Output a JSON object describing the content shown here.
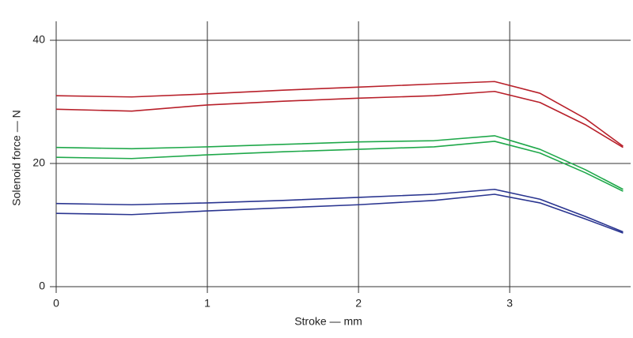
{
  "chart_data": {
    "type": "line",
    "x_label": "Stroke — mm",
    "y_label": "Solenoid force — N",
    "x": [
      0,
      0.5,
      1,
      1.5,
      2,
      2.5,
      2.9,
      3.2,
      3.5,
      3.75
    ],
    "series": [
      {
        "color": "#b8202a",
        "values": [
          31.0,
          30.8,
          31.3,
          31.9,
          32.4,
          32.9,
          33.3,
          31.4,
          27.3,
          22.8
        ]
      },
      {
        "color": "#b8202a",
        "values": [
          28.8,
          28.5,
          29.5,
          30.1,
          30.6,
          31.0,
          31.7,
          29.9,
          26.3,
          22.6
        ]
      },
      {
        "color": "#1fa84a",
        "values": [
          22.6,
          22.4,
          22.7,
          23.1,
          23.5,
          23.7,
          24.5,
          22.3,
          19.0,
          15.8
        ]
      },
      {
        "color": "#1fa84a",
        "values": [
          21.0,
          20.8,
          21.4,
          21.9,
          22.3,
          22.7,
          23.6,
          21.7,
          18.5,
          15.5
        ]
      },
      {
        "color": "#2a3590",
        "values": [
          13.5,
          13.3,
          13.6,
          14.0,
          14.5,
          15.0,
          15.8,
          14.2,
          11.4,
          8.9
        ]
      },
      {
        "color": "#2a3590",
        "values": [
          11.9,
          11.7,
          12.3,
          12.8,
          13.3,
          14.0,
          15.0,
          13.6,
          11.0,
          8.7
        ]
      }
    ],
    "xlim": [
      0,
      3.8
    ],
    "xticks": [
      0,
      1,
      2,
      3
    ],
    "ylim": [
      0,
      45
    ],
    "yticks": [
      0,
      20,
      40
    ],
    "grid": true
  }
}
